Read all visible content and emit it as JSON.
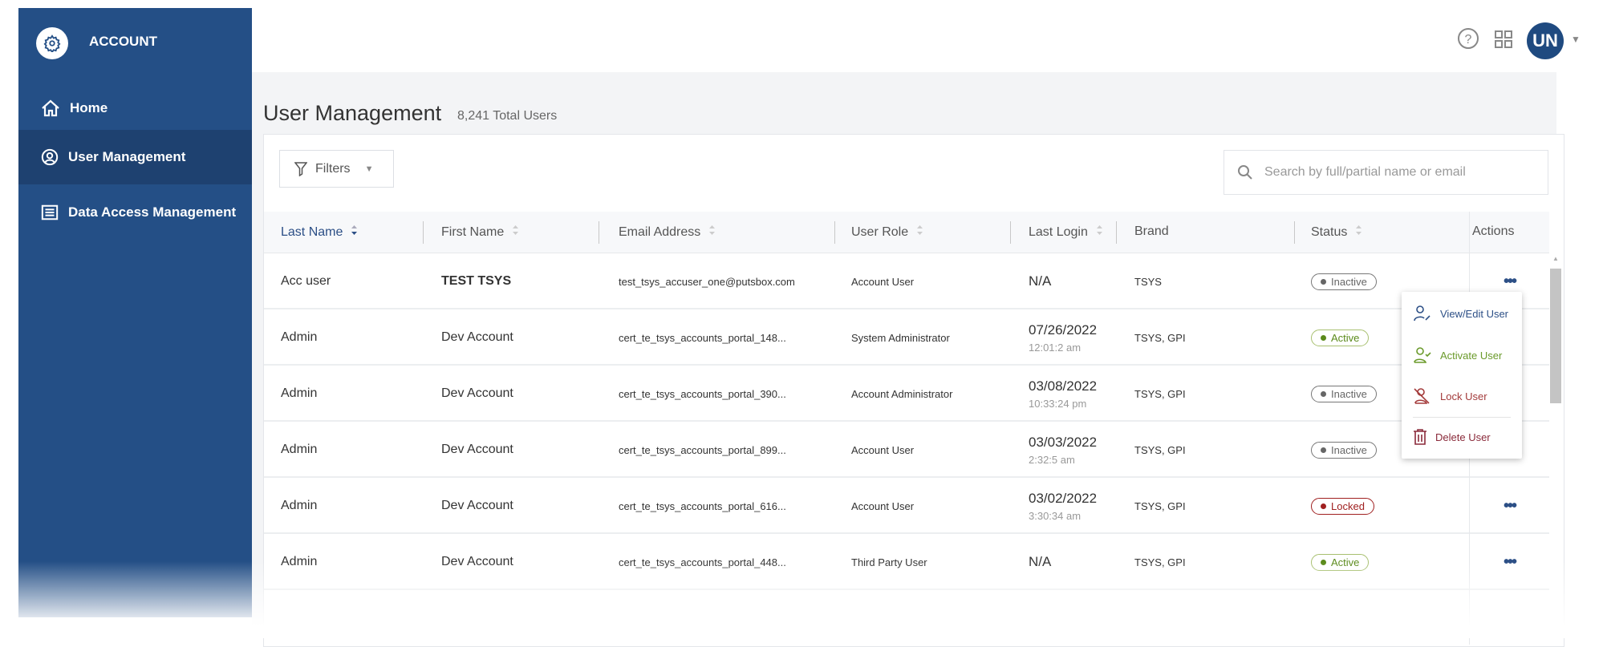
{
  "sidebar": {
    "brand": "ACCOUNT",
    "items": [
      {
        "label": "Home",
        "icon": "home-icon"
      },
      {
        "label": "User Management",
        "icon": "user-circle-icon",
        "selected": true
      },
      {
        "label": "Data Access Management",
        "icon": "list-icon"
      }
    ]
  },
  "header": {
    "avatar_initials": "UN"
  },
  "page": {
    "title": "User Management",
    "total": "8,241 Total Users"
  },
  "toolbar": {
    "filters_label": "Filters",
    "search_placeholder": "Search by full/partial name or email"
  },
  "table": {
    "columns": [
      "Last Name",
      "First Name",
      "Email Address",
      "User Role",
      "Last Login",
      "Brand",
      "Status",
      "Actions"
    ],
    "rows": [
      {
        "last": "Acc user",
        "first": "TEST TSYS",
        "email": "test_tsys_accuser_one@putsbox.com",
        "role": "Account User",
        "date": "N/A",
        "time": "",
        "brand": "TSYS",
        "status": "Inactive"
      },
      {
        "last": "Admin",
        "first": "Dev Account",
        "email": "cert_te_tsys_accounts_portal_148...",
        "role": "System Administrator",
        "date": "07/26/2022",
        "time": "12:01:2 am",
        "brand": "TSYS, GPI",
        "status": "Active"
      },
      {
        "last": "Admin",
        "first": "Dev Account",
        "email": "cert_te_tsys_accounts_portal_390...",
        "role": "Account Administrator",
        "date": "03/08/2022",
        "time": "10:33:24 pm",
        "brand": "TSYS, GPI",
        "status": "Inactive"
      },
      {
        "last": "Admin",
        "first": "Dev Account",
        "email": "cert_te_tsys_accounts_portal_899...",
        "role": "Account User",
        "date": "03/03/2022",
        "time": "2:32:5 am",
        "brand": "TSYS, GPI",
        "status": "Inactive"
      },
      {
        "last": "Admin",
        "first": "Dev Account",
        "email": "cert_te_tsys_accounts_portal_616...",
        "role": "Account User",
        "date": "03/02/2022",
        "time": "3:30:34 am",
        "brand": "TSYS, GPI",
        "status": "Locked"
      },
      {
        "last": "Admin",
        "first": "Dev Account",
        "email": "cert_te_tsys_accounts_portal_448...",
        "role": "Third Party User",
        "date": "N/A",
        "time": "",
        "brand": "TSYS, GPI",
        "status": "Active"
      }
    ]
  },
  "action_menu": {
    "items": [
      {
        "label": "View/Edit User",
        "color": "#2c4f86"
      },
      {
        "label": "Activate User",
        "color": "#6a9a2a"
      },
      {
        "label": "Lock User",
        "color": "#a33a3a"
      },
      {
        "label": "Delete User",
        "color": "#8a2a3a"
      }
    ]
  },
  "colors": {
    "sidebar": "#244f86",
    "sidebar_selected": "#1e4170",
    "accent": "#2c4f86",
    "active": "#5a8a1a",
    "inactive": "#666666",
    "locked": "#a02020"
  }
}
